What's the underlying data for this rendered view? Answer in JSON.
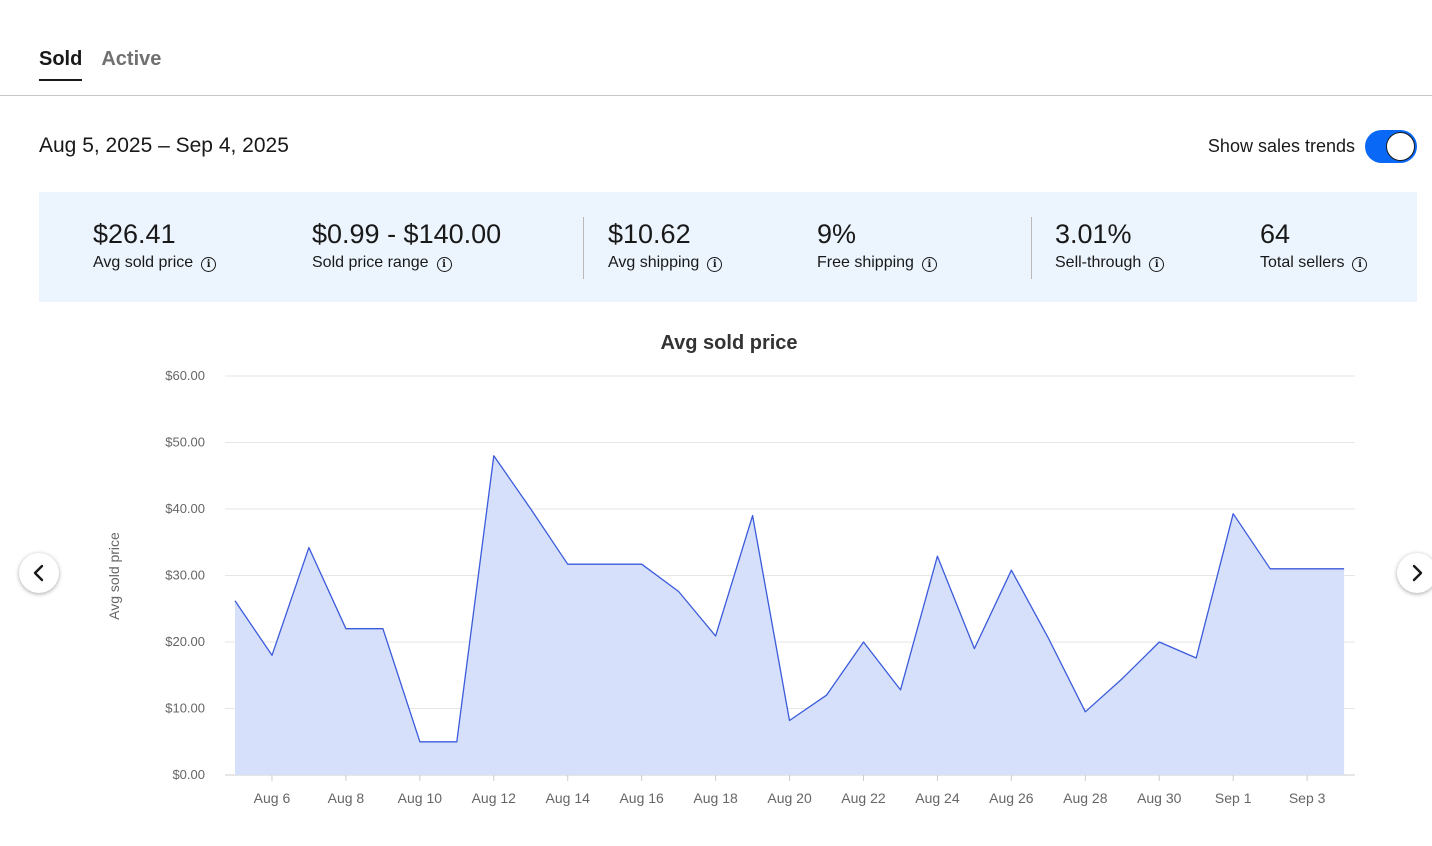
{
  "tabs": [
    {
      "label": "Sold",
      "active": true
    },
    {
      "label": "Active",
      "active": false
    }
  ],
  "date_range": "Aug 5, 2025 – Sep 4, 2025",
  "trend_toggle": {
    "label": "Show sales trends",
    "on": true
  },
  "stats": [
    {
      "value": "$26.41",
      "label": "Avg sold price"
    },
    {
      "value": "$0.99 - $140.00",
      "label": "Sold price range"
    },
    {
      "value": "$10.62",
      "label": "Avg shipping"
    },
    {
      "value": "9%",
      "label": "Free shipping"
    },
    {
      "value": "3.01%",
      "label": "Sell-through"
    },
    {
      "value": "64",
      "label": "Total sellers"
    }
  ],
  "info_icon_glyph": "i",
  "colors": {
    "accent": "#0968f6",
    "line": "#3b5bdb",
    "area": "#d6e0fa",
    "stats_bg": "#ecf4fe"
  },
  "chart_data": {
    "type": "area",
    "title": "Avg sold price",
    "ylabel": "Avg sold price",
    "xlabel": "",
    "ylim": [
      0,
      60
    ],
    "yticks": [
      "$0.00",
      "$10.00",
      "$20.00",
      "$30.00",
      "$40.00",
      "$50.00",
      "$60.00"
    ],
    "ytick_values": [
      0,
      10,
      20,
      30,
      40,
      50,
      60
    ],
    "x": [
      "Aug 5",
      "Aug 6",
      "Aug 7",
      "Aug 8",
      "Aug 9",
      "Aug 10",
      "Aug 11",
      "Aug 12",
      "Aug 13",
      "Aug 14",
      "Aug 15",
      "Aug 16",
      "Aug 17",
      "Aug 18",
      "Aug 19",
      "Aug 20",
      "Aug 21",
      "Aug 22",
      "Aug 23",
      "Aug 24",
      "Aug 25",
      "Aug 26",
      "Aug 27",
      "Aug 28",
      "Aug 29",
      "Aug 30",
      "Aug 31",
      "Sep 1",
      "Sep 2",
      "Sep 3",
      "Sep 4"
    ],
    "xtick_labels": [
      "Aug 6",
      "Aug 8",
      "Aug 10",
      "Aug 12",
      "Aug 14",
      "Aug 16",
      "Aug 18",
      "Aug 20",
      "Aug 22",
      "Aug 24",
      "Aug 26",
      "Aug 28",
      "Aug 30",
      "Sep 1",
      "Sep 3"
    ],
    "series": [
      {
        "values": [
          26.2,
          18.0,
          34.2,
          22.0,
          22.0,
          5.0,
          5.0,
          48.0,
          40.0,
          31.7,
          31.7,
          31.7,
          27.6,
          20.9,
          39.0,
          8.2,
          12.0,
          20.0,
          12.8,
          32.9,
          19.0,
          30.8,
          20.6,
          9.5,
          14.5,
          20.0,
          17.6,
          39.3,
          31.0,
          31.0,
          31.0
        ]
      }
    ],
    "grid": true,
    "legend": "none"
  }
}
